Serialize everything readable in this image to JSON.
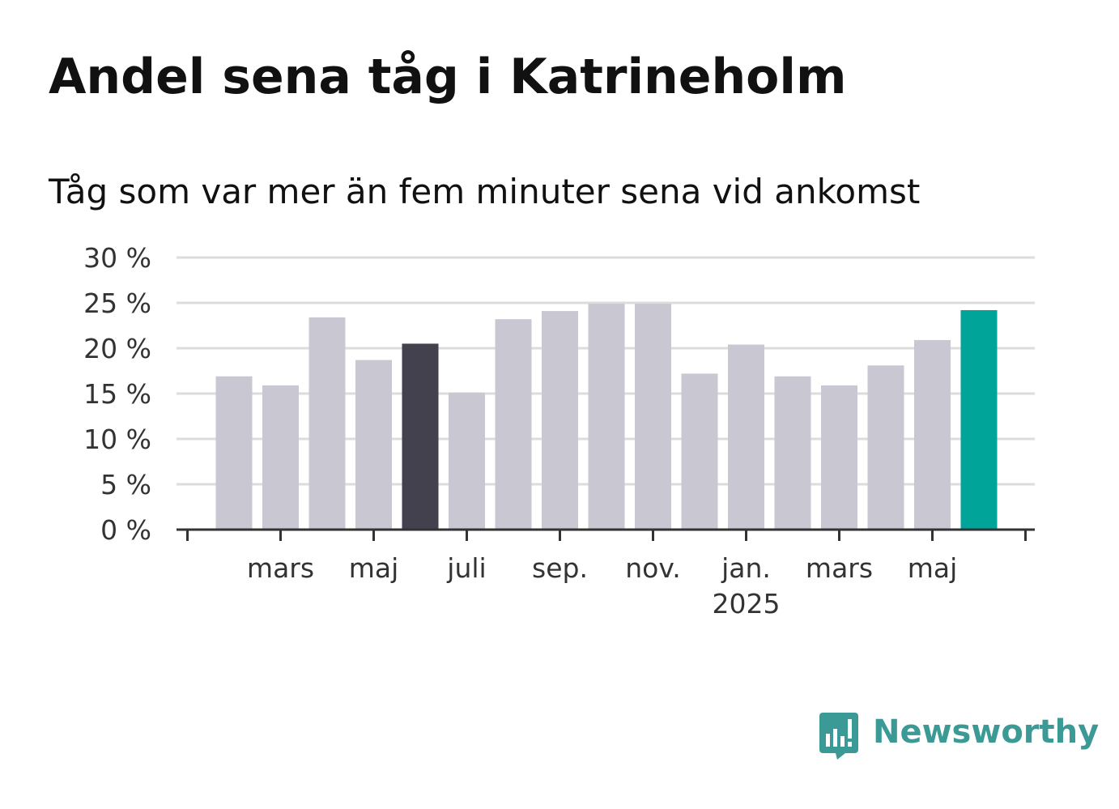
{
  "title": "Andel sena tåg i Katrineholm",
  "subtitle": "Tåg som var mer än fem minuter sena vid ankomst",
  "logo": {
    "text": "Newsworthy",
    "icon": "newsworthy-bar-chart-logo-icon",
    "color": "#3b9a95"
  },
  "chart_data": {
    "type": "bar",
    "unit": "%",
    "ylim": [
      0,
      30
    ],
    "yticks": [
      0,
      5,
      10,
      15,
      20,
      25,
      30
    ],
    "ytick_labels": [
      "0 %",
      "5 %",
      "10 %",
      "15 %",
      "20 %",
      "25 %",
      "30 %"
    ],
    "grid": true,
    "categories": [
      "2024-02",
      "2024-03",
      "2024-04",
      "2024-05",
      "2024-06",
      "2024-07",
      "2024-08",
      "2024-09",
      "2024-10",
      "2024-11",
      "2024-12",
      "2025-01",
      "2025-02",
      "2025-03",
      "2025-04",
      "2025-05",
      "2025-06"
    ],
    "values": [
      16.9,
      15.9,
      23.4,
      18.7,
      20.5,
      15.1,
      23.2,
      24.1,
      24.9,
      24.9,
      17.2,
      20.4,
      16.9,
      15.9,
      18.1,
      20.9,
      24.2
    ],
    "highlight": {
      "2024-06": "#43414e",
      "2025-06": "#00a499"
    },
    "default_color": "#c8c7d2",
    "xtick_labels": [
      {
        "at": "2024-03",
        "lines": [
          "mars"
        ]
      },
      {
        "at": "2024-05",
        "lines": [
          "maj"
        ]
      },
      {
        "at": "2024-07",
        "lines": [
          "juli"
        ]
      },
      {
        "at": "2024-09",
        "lines": [
          "sep."
        ]
      },
      {
        "at": "2024-11",
        "lines": [
          "nov."
        ]
      },
      {
        "at": "2025-01",
        "lines": [
          "jan.",
          "2025"
        ]
      },
      {
        "at": "2025-03",
        "lines": [
          "mars"
        ]
      },
      {
        "at": "2025-05",
        "lines": [
          "maj"
        ]
      }
    ],
    "colors": {
      "grid": "#dcdcdc",
      "axis": "#333333"
    }
  }
}
